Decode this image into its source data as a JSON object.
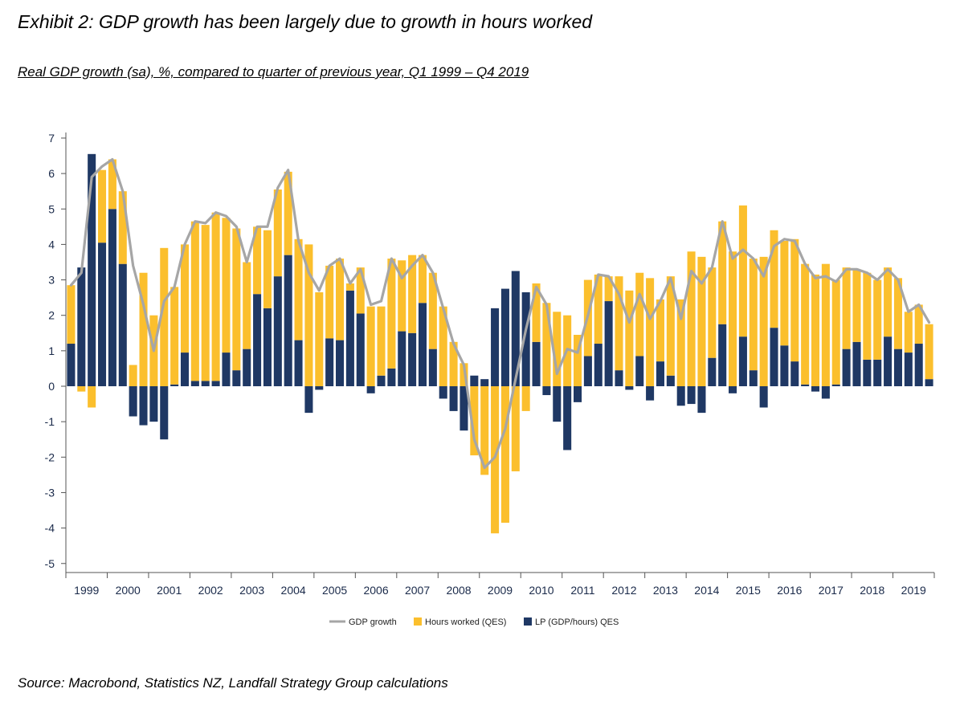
{
  "exhibit_title": "Exhibit 2: GDP growth has been largely due to growth in hours worked",
  "source_note": "Source: Macrobond, Statistics NZ, Landfall Strategy Group calculations",
  "chart_data": {
    "type": "bar",
    "stacked": true,
    "title": "Real GDP growth (sa), %, compared to quarter of previous year, Q1 1999 – Q4 2019",
    "xlabel": "",
    "ylabel": "",
    "ylim": [
      -5.4,
      7.4
    ],
    "yticks": [
      -5,
      -4,
      -3,
      -2,
      -1,
      0,
      1,
      2,
      3,
      4,
      5,
      6,
      7
    ],
    "year_labels": [
      "1999",
      "2000",
      "2001",
      "2002",
      "2003",
      "2004",
      "2005",
      "2006",
      "2007",
      "2008",
      "2009",
      "2010",
      "2011",
      "2012",
      "2013",
      "2014",
      "2015",
      "2016",
      "2017",
      "2018",
      "2019"
    ],
    "legend_position": "bottom",
    "colors": {
      "gdp": "#a6a6a6",
      "hours": "#fbbf2d",
      "lp": "#1f3864"
    },
    "series": [
      {
        "name": "GDP growth",
        "type": "line",
        "values": [
          2.85,
          3.2,
          5.9,
          6.2,
          6.4,
          5.5,
          3.4,
          2.3,
          1.0,
          2.4,
          2.8,
          4.0,
          4.65,
          4.6,
          4.9,
          4.8,
          4.5,
          3.5,
          4.5,
          4.5,
          5.6,
          6.1,
          4.1,
          3.2,
          2.7,
          3.4,
          3.6,
          2.9,
          3.3,
          2.3,
          2.4,
          3.6,
          3.05,
          3.4,
          3.7,
          3.2,
          2.2,
          1.2,
          0.6,
          -1.5,
          -2.3,
          -2.0,
          -1.2,
          0.2,
          1.6,
          2.8,
          2.3,
          0.35,
          1.05,
          0.95,
          2.0,
          3.15,
          3.1,
          2.6,
          1.8,
          2.6,
          1.9,
          2.4,
          3.05,
          1.9,
          3.25,
          2.9,
          3.35,
          4.65,
          3.6,
          3.85,
          3.6,
          3.1,
          3.95,
          4.15,
          4.1,
          3.45,
          3.05,
          3.1,
          2.95,
          3.3,
          3.3,
          3.2,
          3.0,
          3.3,
          3.0,
          2.1,
          2.3,
          1.8
        ]
      },
      {
        "name": "Hours worked (QES)",
        "type": "bar",
        "values": [
          1.65,
          -0.15,
          -0.6,
          2.05,
          1.4,
          2.05,
          0.6,
          3.2,
          2.0,
          3.9,
          2.75,
          3.05,
          4.5,
          4.4,
          4.75,
          3.8,
          4.0,
          2.45,
          1.9,
          2.2,
          2.45,
          2.35,
          2.85,
          4.0,
          2.65,
          2.05,
          2.3,
          0.2,
          1.3,
          2.25,
          1.95,
          3.1,
          2.0,
          2.2,
          1.35,
          2.15,
          2.25,
          1.25,
          0.65,
          -1.95,
          -2.5,
          -4.15,
          -3.85,
          -2.4,
          -0.7,
          1.65,
          2.35,
          2.1,
          2.0,
          1.45,
          2.15,
          1.95,
          0.7,
          2.65,
          2.7,
          2.35,
          3.05,
          1.75,
          2.8,
          2.45,
          3.8,
          3.65,
          2.55,
          2.9,
          3.8,
          3.7,
          3.15,
          3.65,
          2.75,
          2.95,
          3.45,
          3.4,
          3.15,
          3.45,
          2.95,
          2.3,
          2.05,
          2.45,
          2.25,
          1.95,
          2.0,
          1.15,
          1.1,
          1.55
        ]
      },
      {
        "name": "LP (GDP/hours) QES",
        "type": "bar",
        "values": [
          1.2,
          3.35,
          6.55,
          4.05,
          5.0,
          3.45,
          -0.85,
          -1.1,
          -1.0,
          -1.5,
          0.05,
          0.95,
          0.15,
          0.15,
          0.15,
          0.95,
          0.45,
          1.05,
          2.6,
          2.2,
          3.1,
          3.7,
          1.3,
          -0.75,
          -0.1,
          1.35,
          1.3,
          2.7,
          2.05,
          -0.2,
          0.3,
          0.5,
          1.55,
          1.5,
          2.35,
          1.05,
          -0.35,
          -0.7,
          -1.25,
          0.3,
          0.2,
          2.2,
          2.75,
          3.25,
          2.65,
          1.25,
          -0.25,
          -1.0,
          -1.8,
          -0.45,
          0.85,
          1.2,
          2.4,
          0.45,
          -0.1,
          0.85,
          -0.4,
          0.7,
          0.3,
          -0.55,
          -0.5,
          -0.75,
          0.8,
          1.75,
          -0.2,
          1.4,
          0.45,
          -0.6,
          1.65,
          1.15,
          0.7,
          0.05,
          -0.15,
          -0.35,
          0.05,
          1.05,
          1.25,
          0.75,
          0.75,
          1.4,
          1.05,
          0.95,
          1.2,
          0.2
        ]
      }
    ]
  }
}
